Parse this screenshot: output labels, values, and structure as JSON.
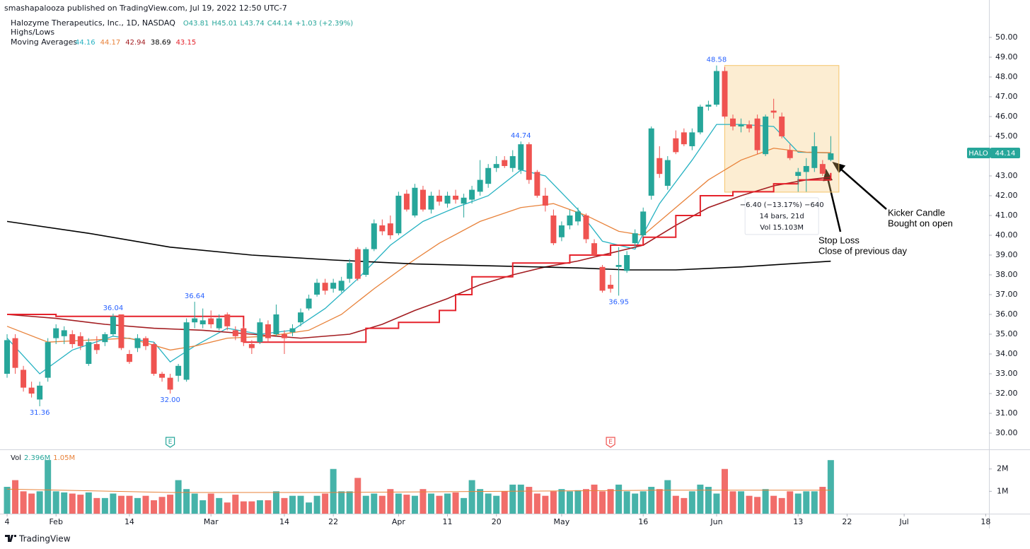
{
  "header": {
    "published": "smashapalooza published on TradingView.com, Jul 19, 2022 12:50 UTC-7",
    "symbol": "Halozyme Therapeutics, Inc., 1D, NASDAQ",
    "ohlc_legend": [
      "O43.81",
      "H45.01",
      "L43.74",
      "C44.14",
      "+1.03 (+2.39%)"
    ],
    "highs_lows": "Highs/Lows",
    "moving_averages": "Moving Averages"
  },
  "footer": "TradingView",
  "chart_data": {
    "type": "candlestick",
    "up_color": "#26a69a",
    "down_color": "#ef5350",
    "xlim": [
      -0.87,
      120.4
    ],
    "ylim": [
      29.18,
      51.89
    ],
    "grid": false,
    "xticks": [
      {
        "value": 0,
        "label": "4"
      },
      {
        "value": 6,
        "label": "Feb"
      },
      {
        "value": 15,
        "label": "14"
      },
      {
        "value": 25,
        "label": "Mar"
      },
      {
        "value": 34,
        "label": "14"
      },
      {
        "value": 40,
        "label": "22"
      },
      {
        "value": 48,
        "label": "Apr"
      },
      {
        "value": 54,
        "label": "11"
      },
      {
        "value": 60,
        "label": "20"
      },
      {
        "value": 68,
        "label": "May"
      },
      {
        "value": 78,
        "label": "16"
      },
      {
        "value": 87,
        "label": "Jun"
      },
      {
        "value": 97,
        "label": "13"
      },
      {
        "value": 103,
        "label": "22"
      },
      {
        "value": 110,
        "label": "Jul"
      },
      {
        "value": 120,
        "label": "18"
      }
    ],
    "yticks": [
      {
        "value": 30,
        "label": "30.00"
      },
      {
        "value": 31,
        "label": "31.00"
      },
      {
        "value": 32,
        "label": "32.00"
      },
      {
        "value": 33,
        "label": "33.00"
      },
      {
        "value": 34,
        "label": "34.00"
      },
      {
        "value": 35,
        "label": "35.00"
      },
      {
        "value": 36,
        "label": "36.00"
      },
      {
        "value": 37,
        "label": "37.00"
      },
      {
        "value": 38,
        "label": "38.00"
      },
      {
        "value": 39,
        "label": "39.00"
      },
      {
        "value": 40,
        "label": "40.00"
      },
      {
        "value": 41,
        "label": "41.00"
      },
      {
        "value": 42,
        "label": "42.00"
      },
      {
        "value": 43,
        "label": "43.00"
      },
      {
        "value": 44,
        "label": "44.00"
      },
      {
        "value": 45,
        "label": "45.00"
      },
      {
        "value": 46,
        "label": "46.00"
      },
      {
        "value": 47,
        "label": "47.00"
      },
      {
        "value": 48,
        "label": "48.00"
      },
      {
        "value": 49,
        "label": "49.00"
      },
      {
        "value": 50,
        "label": "50.00"
      }
    ],
    "ohlc": [
      [
        33.0,
        35.0,
        32.8,
        34.7
      ],
      [
        34.8,
        35.0,
        33.0,
        33.3
      ],
      [
        33.2,
        33.4,
        32.1,
        32.3
      ],
      [
        32.3,
        32.6,
        31.8,
        32.0
      ],
      [
        31.7,
        32.6,
        31.36,
        32.4
      ],
      [
        32.8,
        34.8,
        32.6,
        34.6
      ],
      [
        34.8,
        35.5,
        34.5,
        35.3
      ],
      [
        34.9,
        35.4,
        34.5,
        35.2
      ],
      [
        35.0,
        35.2,
        34.3,
        34.5
      ],
      [
        34.9,
        35.1,
        34.2,
        34.4
      ],
      [
        33.5,
        34.8,
        33.4,
        34.6
      ],
      [
        34.5,
        34.9,
        34.0,
        34.2
      ],
      [
        34.6,
        35.1,
        34.4,
        35.0
      ],
      [
        35.0,
        36.04,
        34.9,
        35.9
      ],
      [
        36.0,
        36.0,
        34.2,
        34.3
      ],
      [
        34.0,
        34.2,
        33.5,
        33.6
      ],
      [
        34.3,
        35.0,
        34.1,
        34.8
      ],
      [
        34.8,
        34.9,
        34.2,
        34.4
      ],
      [
        34.5,
        34.6,
        32.9,
        33.0
      ],
      [
        33.0,
        33.1,
        32.6,
        32.8
      ],
      [
        32.8,
        33.0,
        32.0,
        32.2
      ],
      [
        32.9,
        33.5,
        32.6,
        33.4
      ],
      [
        32.7,
        35.8,
        32.6,
        35.6
      ],
      [
        35.6,
        36.64,
        35.3,
        35.8
      ],
      [
        35.5,
        36.3,
        35.3,
        35.7
      ],
      [
        35.8,
        36.2,
        35.3,
        35.5
      ],
      [
        35.3,
        36.0,
        35.2,
        35.8
      ],
      [
        36.0,
        36.1,
        35.2,
        35.4
      ],
      [
        35.2,
        35.4,
        34.7,
        34.9
      ],
      [
        35.3,
        35.4,
        34.4,
        34.6
      ],
      [
        34.5,
        34.7,
        34.0,
        34.3
      ],
      [
        34.6,
        35.8,
        34.5,
        35.6
      ],
      [
        35.5,
        35.7,
        34.6,
        34.8
      ],
      [
        35.0,
        36.5,
        34.9,
        36.0
      ],
      [
        35.0,
        35.2,
        34.0,
        34.8
      ],
      [
        35.1,
        35.5,
        34.9,
        35.3
      ],
      [
        35.6,
        36.3,
        35.4,
        36.1
      ],
      [
        36.3,
        37.0,
        36.2,
        36.8
      ],
      [
        37.0,
        37.8,
        36.9,
        37.6
      ],
      [
        37.6,
        37.8,
        37.0,
        37.2
      ],
      [
        37.3,
        37.8,
        37.1,
        37.6
      ],
      [
        37.2,
        37.9,
        37.1,
        37.7
      ],
      [
        37.8,
        38.8,
        37.6,
        38.6
      ],
      [
        39.3,
        39.4,
        37.7,
        37.8
      ],
      [
        38.0,
        39.4,
        37.9,
        39.3
      ],
      [
        39.3,
        40.8,
        39.2,
        40.6
      ],
      [
        40.5,
        40.8,
        40.0,
        40.2
      ],
      [
        40.6,
        41.0,
        39.8,
        40.0
      ],
      [
        40.1,
        42.2,
        40.0,
        42.0
      ],
      [
        42.1,
        42.3,
        41.2,
        41.3
      ],
      [
        41.0,
        42.6,
        40.9,
        42.4
      ],
      [
        42.3,
        42.5,
        41.2,
        41.3
      ],
      [
        41.3,
        42.2,
        41.1,
        42.0
      ],
      [
        42.0,
        42.3,
        41.5,
        41.7
      ],
      [
        41.6,
        42.2,
        41.4,
        42.0
      ],
      [
        42.0,
        42.3,
        41.6,
        41.8
      ],
      [
        41.6,
        42.1,
        40.9,
        41.9
      ],
      [
        41.8,
        42.5,
        41.6,
        42.3
      ],
      [
        42.2,
        43.8,
        42.0,
        42.8
      ],
      [
        42.6,
        43.6,
        42.4,
        43.4
      ],
      [
        43.4,
        44.0,
        43.2,
        43.6
      ],
      [
        43.8,
        44.0,
        43.4,
        43.5
      ],
      [
        43.4,
        44.3,
        43.2,
        44.0
      ],
      [
        43.3,
        44.74,
        43.1,
        44.6
      ],
      [
        44.6,
        44.7,
        42.6,
        42.8
      ],
      [
        43.2,
        43.3,
        41.9,
        42.0
      ],
      [
        42.0,
        42.4,
        41.2,
        41.5
      ],
      [
        41.0,
        41.3,
        39.5,
        39.6
      ],
      [
        39.9,
        40.7,
        39.7,
        40.5
      ],
      [
        40.5,
        41.3,
        40.3,
        41.0
      ],
      [
        40.7,
        41.4,
        40.5,
        41.2
      ],
      [
        41.0,
        41.1,
        39.6,
        39.8
      ],
      [
        39.6,
        39.8,
        38.9,
        39.0
      ],
      [
        38.4,
        38.5,
        37.1,
        37.2
      ],
      [
        37.5,
        38.0,
        37.1,
        37.3
      ],
      [
        38.4,
        39.4,
        36.95,
        38.5
      ],
      [
        38.2,
        39.2,
        38.1,
        39.0
      ],
      [
        39.6,
        40.3,
        39.4,
        40.1
      ],
      [
        40.0,
        41.4,
        39.9,
        41.2
      ],
      [
        42.0,
        45.5,
        41.8,
        45.4
      ],
      [
        43.9,
        44.5,
        42.9,
        43.1
      ],
      [
        42.5,
        44.0,
        42.3,
        43.8
      ],
      [
        44.9,
        45.3,
        44.1,
        44.2
      ],
      [
        45.2,
        45.4,
        44.5,
        44.6
      ],
      [
        44.5,
        45.4,
        44.3,
        45.2
      ],
      [
        45.2,
        46.6,
        45.1,
        46.5
      ],
      [
        46.5,
        46.8,
        46.3,
        46.6
      ],
      [
        46.6,
        48.58,
        46.5,
        48.3
      ],
      [
        48.3,
        48.5,
        45.9,
        46.0
      ],
      [
        45.9,
        46.1,
        45.3,
        45.5
      ],
      [
        45.5,
        45.9,
        45.2,
        45.6
      ],
      [
        45.6,
        45.8,
        45.2,
        45.4
      ],
      [
        45.9,
        46.1,
        44.1,
        44.3
      ],
      [
        44.1,
        46.1,
        44.0,
        46.0
      ],
      [
        46.3,
        46.9,
        45.9,
        46.2
      ],
      [
        46.0,
        46.2,
        44.9,
        45.0
      ],
      [
        44.3,
        44.6,
        43.8,
        43.9
      ],
      [
        43.0,
        43.4,
        42.2,
        43.2
      ],
      [
        43.2,
        43.9,
        42.2,
        43.5
      ],
      [
        43.4,
        45.2,
        43.2,
        44.5
      ],
      [
        43.6,
        43.8,
        43.0,
        43.11
      ],
      [
        43.81,
        45.01,
        43.74,
        44.14
      ]
    ],
    "moving_averages": [
      {
        "color": "#26b2c2",
        "legend_value": 44.16,
        "x": [
          0,
          4,
          8,
          13,
          18,
          20,
          23,
          27,
          31,
          35,
          39,
          43,
          47,
          51,
          55,
          59,
          63,
          66,
          70,
          73,
          77,
          80,
          84,
          87,
          90,
          94,
          97,
          101
        ],
        "values": [
          34.8,
          33.0,
          34.2,
          34.9,
          34.6,
          33.6,
          34.4,
          35.3,
          35.0,
          35.2,
          36.3,
          37.8,
          39.5,
          40.7,
          41.4,
          42.0,
          43.3,
          43.0,
          41.3,
          39.7,
          39.3,
          41.6,
          43.8,
          45.6,
          45.6,
          45.5,
          44.2,
          44.16
        ]
      },
      {
        "color": "#e8823a",
        "legend_value": 44.17,
        "x": [
          0,
          5,
          10,
          15,
          20,
          23,
          27,
          32,
          37,
          41,
          45,
          49,
          53,
          58,
          63,
          67,
          71,
          75,
          78,
          82,
          86,
          90,
          94,
          98,
          101
        ],
        "values": [
          35.4,
          34.6,
          34.7,
          34.8,
          34.2,
          34.4,
          34.8,
          34.9,
          35.2,
          36.0,
          37.3,
          38.5,
          39.6,
          40.7,
          41.4,
          41.6,
          41.0,
          40.2,
          40.0,
          41.4,
          42.8,
          43.8,
          44.4,
          44.2,
          44.17
        ]
      },
      {
        "color": "#a31d21",
        "legend_value": 42.94,
        "x": [
          0,
          6,
          12,
          18,
          24,
          30,
          36,
          42,
          46,
          50,
          54,
          58,
          62,
          66,
          70,
          74,
          78,
          82,
          86,
          90,
          94,
          98,
          101
        ],
        "values": [
          36.0,
          35.8,
          35.5,
          35.3,
          35.2,
          35.0,
          34.8,
          35.0,
          35.5,
          36.2,
          36.8,
          37.5,
          38.0,
          38.4,
          38.7,
          39.1,
          39.5,
          40.5,
          41.4,
          42.0,
          42.5,
          42.8,
          42.94
        ]
      },
      {
        "color": "#000000",
        "legend_value": 38.69,
        "x": [
          0,
          10,
          20,
          30,
          40,
          50,
          60,
          70,
          76,
          82,
          90,
          101
        ],
        "values": [
          40.7,
          40.1,
          39.4,
          39.0,
          38.75,
          38.55,
          38.45,
          38.35,
          38.25,
          38.25,
          38.4,
          38.69
        ]
      },
      {
        "color": "#e5222b",
        "legend_value": 43.15,
        "step": true,
        "x": [
          0,
          6,
          20,
          29,
          43,
          44,
          48,
          53,
          55,
          57,
          62,
          69,
          74,
          78,
          82,
          85,
          89,
          94,
          97,
          101
        ],
        "values": [
          36.0,
          35.9,
          35.9,
          34.6,
          34.6,
          35.3,
          35.6,
          36.2,
          37.0,
          37.9,
          38.6,
          39.0,
          39.5,
          39.9,
          41.0,
          42.0,
          42.2,
          42.6,
          42.8,
          43.15
        ]
      }
    ],
    "high_low_labels": [
      {
        "x": 4,
        "value": 31.36,
        "label": "31.36",
        "position": "below"
      },
      {
        "x": 20,
        "value": 32,
        "label": "32.00",
        "position": "below"
      },
      {
        "x": 13,
        "value": 36.04,
        "label": "36.04",
        "position": "above"
      },
      {
        "x": 23,
        "value": 36.64,
        "label": "36.64",
        "position": "above"
      },
      {
        "x": 63,
        "value": 44.74,
        "label": "44.74",
        "position": "above"
      },
      {
        "x": 75,
        "value": 36.95,
        "label": "36.95",
        "position": "below"
      },
      {
        "x": 87,
        "value": 48.58,
        "label": "48.58",
        "position": "above"
      }
    ],
    "price_tag": {
      "symbol": "HALO",
      "value": 44.14,
      "color": "#26a69a"
    },
    "earnings": [
      {
        "x": 20,
        "label": "E",
        "color": "#26a69a"
      },
      {
        "x": 74,
        "label": "E",
        "color": "#ef5350"
      }
    ],
    "measure": {
      "x": [
        88,
        102
      ],
      "y": [
        48.58,
        42.18
      ],
      "color": "#f5c56b",
      "lines": [
        "−6.40 (−13.17%) −640",
        "14 bars, 21d",
        "Vol 15.103M"
      ]
    },
    "annotations": [
      [
        "Kicker Candle",
        "Bought on open"
      ],
      [
        "Stop Loss",
        "Close of previous day"
      ]
    ],
    "volume": {
      "label": "Vol",
      "current": "2.396M",
      "ma_label": "1.05M",
      "ma_color": "#e8823a",
      "ylim": [
        0,
        2750000
      ],
      "yticks": [
        {
          "value": 1000000,
          "label": "1M"
        },
        {
          "value": 2000000,
          "label": "2M"
        }
      ],
      "values": [
        1200000,
        1500000,
        1000000,
        900000,
        1000000,
        2400000,
        1000000,
        950000,
        900000,
        850000,
        950000,
        700000,
        700000,
        900000,
        800000,
        800000,
        700000,
        800000,
        600000,
        750000,
        850000,
        1500000,
        1100000,
        900000,
        600000,
        900000,
        700000,
        500000,
        850000,
        550000,
        550000,
        600000,
        600000,
        1000000,
        700000,
        800000,
        800000,
        500000,
        800000,
        900000,
        2000000,
        1000000,
        1000000,
        1600000,
        800000,
        900000,
        800000,
        1100000,
        900000,
        850000,
        800000,
        1100000,
        900000,
        800000,
        900000,
        950000,
        700000,
        1500000,
        1100000,
        900000,
        800000,
        1000000,
        1300000,
        1300000,
        1200000,
        900000,
        800000,
        1000000,
        1100000,
        1000000,
        1050000,
        1100000,
        1300000,
        1000000,
        1100000,
        1300000,
        1000000,
        900000,
        1000000,
        1200000,
        1100000,
        1500000,
        800000,
        700000,
        1000000,
        1300000,
        1200000,
        900000,
        2000000,
        1000000,
        1000000,
        800000,
        750000,
        1100000,
        800000,
        700000,
        1000000,
        900000,
        1000000,
        1000000,
        1200000,
        2396000
      ],
      "ma_x": [
        0,
        20,
        40,
        60,
        80,
        101
      ],
      "ma_values": [
        1100000,
        950000,
        950000,
        1000000,
        1050000,
        1050000
      ]
    }
  }
}
